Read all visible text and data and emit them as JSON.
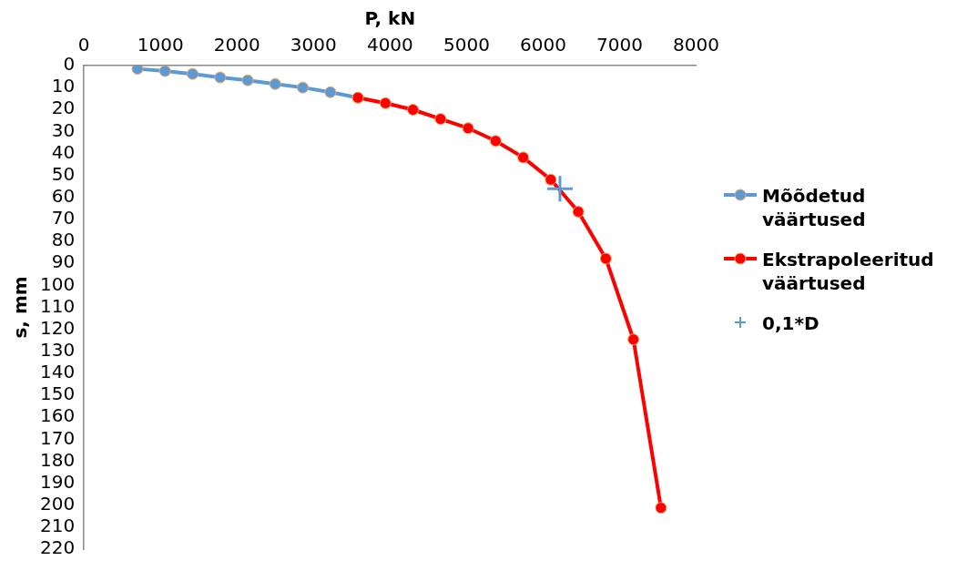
{
  "chart_data": {
    "type": "line",
    "xlabel": "P, kN",
    "ylabel": "s, mm",
    "series": [
      {
        "name": "Mõõdetud väärtused",
        "color": "#5b9bd5",
        "marker": "circle",
        "x": [
          700,
          1060,
          1420,
          1780,
          2140,
          2500,
          2860,
          3220,
          3580
        ],
        "values": [
          1.5,
          2.5,
          3.8,
          5.4,
          6.7,
          8.4,
          10,
          12.1,
          14.6
        ]
      },
      {
        "name": "Ekstrapoleeritud väärtused",
        "color": "#ff0000",
        "marker": "circle",
        "x": [
          3580,
          3940,
          4300,
          4660,
          5020,
          5380,
          5740,
          6100,
          6460,
          6820,
          7180,
          7540
        ],
        "values": [
          14.6,
          17.1,
          20.1,
          24.3,
          28.5,
          34.3,
          41.8,
          51.9,
          66.5,
          87.8,
          124.6,
          201.2
        ]
      },
      {
        "name": "0,1*D",
        "type": "scatter",
        "color": "#5b9bd5",
        "marker": "cross",
        "x": [
          6220
        ],
        "values": [
          56
        ]
      }
    ],
    "xlim": [
      0,
      8000
    ],
    "xticks": [
      0,
      1000,
      2000,
      3000,
      4000,
      5000,
      6000,
      7000,
      8000
    ],
    "ylim": [
      220,
      0
    ],
    "yticks": [
      0,
      10,
      20,
      30,
      40,
      50,
      60,
      70,
      80,
      90,
      100,
      110,
      120,
      130,
      140,
      150,
      160,
      170,
      180,
      190,
      200,
      210,
      220
    ],
    "grid": false,
    "legend": "right"
  }
}
